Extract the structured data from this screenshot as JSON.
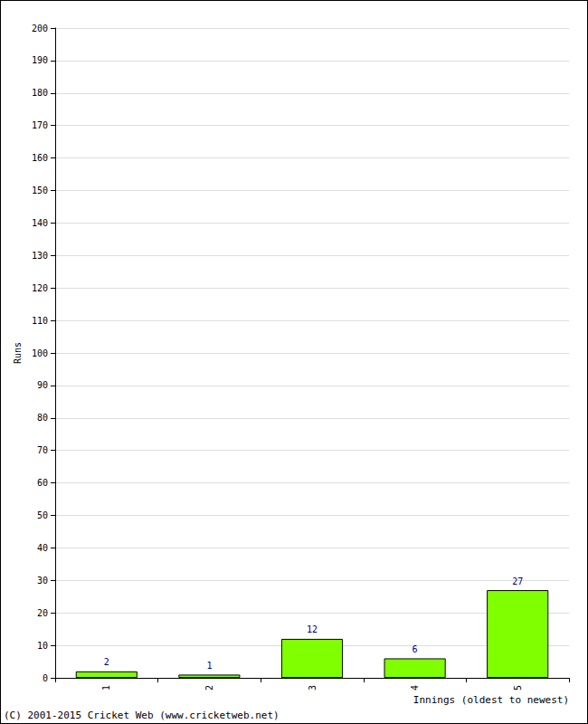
{
  "chart_data": {
    "type": "bar",
    "x_label": "Innings (oldest to newest)",
    "y_label": "Runs",
    "annotations": [
      "(C) 2001-2015 Cricket Web (www.cricketweb.net)"
    ],
    "categories": [
      "1",
      "2",
      "3",
      "4",
      "5"
    ],
    "values": [
      2,
      1,
      12,
      6,
      27
    ],
    "color": "#80ff00",
    "ylim": [
      0,
      200
    ],
    "yticks": [
      0,
      10,
      20,
      30,
      40,
      50,
      60,
      70,
      80,
      90,
      100,
      110,
      120,
      130,
      140,
      150,
      160,
      170,
      180,
      190,
      200
    ],
    "grid": true,
    "data_labels": true
  }
}
